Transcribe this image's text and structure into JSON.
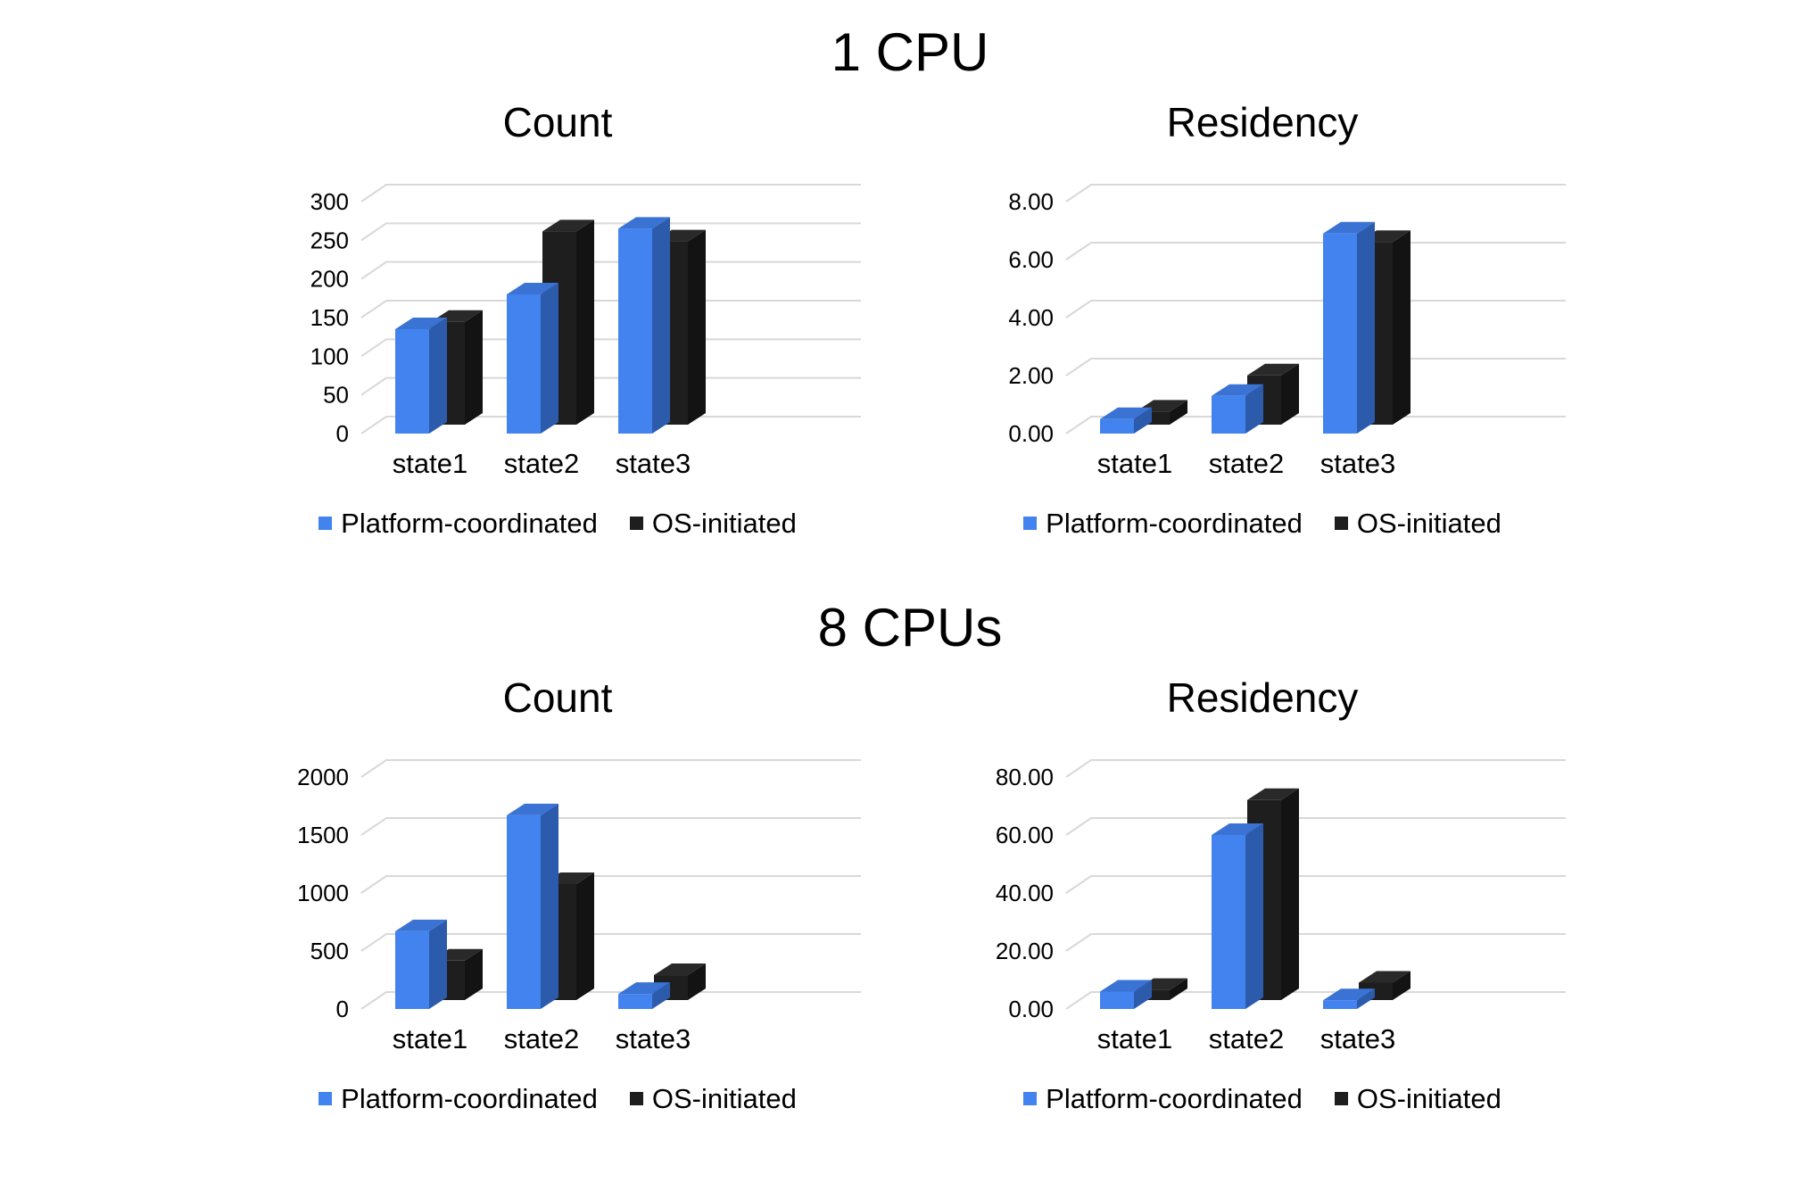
{
  "page": {
    "background": "#ffffff"
  },
  "colors": {
    "platform_front": "#4283f0",
    "platform_top": "#3a73d4",
    "platform_side": "#2d5bac",
    "os_front": "#1e1e1e",
    "os_top": "#292929",
    "os_side": "#131313",
    "gridline": "#d8d8d8",
    "text": "#000000"
  },
  "sections": [
    {
      "title": "1 CPU"
    },
    {
      "title": "8 CPUs"
    }
  ],
  "chart_data": [
    {
      "section": "1 CPU",
      "type": "bar",
      "style": "3d-column",
      "title": "Count",
      "xlabel": "",
      "ylabel": "",
      "grid": true,
      "legend_position": "bottom",
      "categories": [
        "state1",
        "state2",
        "state3"
      ],
      "series": [
        {
          "name": "Platform-coordinated",
          "values": [
            135,
            180,
            265
          ]
        },
        {
          "name": "OS-initiated",
          "values": [
            133,
            250,
            237
          ]
        }
      ],
      "ylabels": [
        "0",
        "50",
        "100",
        "150",
        "200",
        "250",
        "300"
      ],
      "ylim": [
        0,
        300
      ],
      "ymax": 300
    },
    {
      "section": "1 CPU",
      "type": "bar",
      "style": "3d-column",
      "title": "Residency",
      "xlabel": "",
      "ylabel": "",
      "grid": true,
      "legend_position": "bottom",
      "categories": [
        "state1",
        "state2",
        "state3"
      ],
      "series": [
        {
          "name": "Platform-coordinated",
          "values": [
            0.5,
            1.3,
            6.9
          ]
        },
        {
          "name": "OS-initiated",
          "values": [
            0.45,
            1.7,
            6.3
          ]
        }
      ],
      "ylabels": [
        "0.00",
        "2.00",
        "4.00",
        "6.00",
        "8.00"
      ],
      "ylim": [
        0,
        8
      ],
      "ymax": 8
    },
    {
      "section": "8 CPUs",
      "type": "bar",
      "style": "3d-column",
      "title": "Count",
      "xlabel": "",
      "ylabel": "",
      "grid": true,
      "legend_position": "bottom",
      "categories": [
        "state1",
        "state2",
        "state3"
      ],
      "series": [
        {
          "name": "Platform-coordinated",
          "values": [
            670,
            1670,
            130
          ]
        },
        {
          "name": "OS-initiated",
          "values": [
            340,
            1000,
            215
          ]
        }
      ],
      "ylabels": [
        "0",
        "500",
        "1000",
        "1500",
        "2000"
      ],
      "ylim": [
        0,
        2000
      ],
      "ymax": 2000
    },
    {
      "section": "8 CPUs",
      "type": "bar",
      "style": "3d-column",
      "title": "Residency",
      "xlabel": "",
      "ylabel": "",
      "grid": true,
      "legend_position": "bottom",
      "categories": [
        "state1",
        "state2",
        "state3"
      ],
      "series": [
        {
          "name": "Platform-coordinated",
          "values": [
            6,
            60,
            3
          ]
        },
        {
          "name": "OS-initiated",
          "values": [
            3.5,
            69,
            6
          ]
        }
      ],
      "ylabels": [
        "0.00",
        "20.00",
        "40.00",
        "60.00",
        "80.00"
      ],
      "ylim": [
        0,
        80
      ],
      "ymax": 80
    }
  ]
}
